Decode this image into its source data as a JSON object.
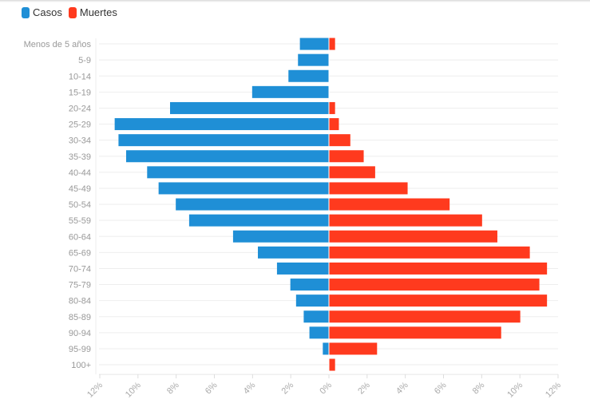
{
  "chart_data": {
    "type": "bar",
    "orientation": "horizontal-population-pyramid",
    "categories": [
      "Menos de 5 años",
      "5-9",
      "10-14",
      "15-19",
      "20-24",
      "25-29",
      "30-34",
      "35-39",
      "40-44",
      "45-49",
      "50-54",
      "55-59",
      "60-64",
      "65-69",
      "70-74",
      "75-79",
      "80-84",
      "85-89",
      "90-94",
      "95-99",
      "100+"
    ],
    "series": [
      {
        "name": "Casos",
        "color": "#1f8fd6",
        "side": "left",
        "values": [
          1.5,
          1.6,
          2.1,
          4.0,
          8.3,
          11.2,
          11.0,
          10.6,
          9.5,
          8.9,
          8.0,
          7.3,
          5.0,
          3.7,
          2.7,
          2.0,
          1.7,
          1.3,
          1.0,
          0.3,
          0.0
        ]
      },
      {
        "name": "Muertes",
        "color": "#ff3a1e",
        "side": "right",
        "values": [
          0.3,
          0.0,
          0.0,
          0.0,
          0.3,
          0.5,
          1.1,
          1.8,
          2.4,
          4.1,
          6.3,
          8.0,
          8.8,
          10.5,
          11.4,
          11.0,
          11.4,
          10.0,
          9.0,
          2.5,
          0.3
        ]
      }
    ],
    "xlim": [
      -12,
      12
    ],
    "xticks": [
      -12,
      -10,
      -8,
      -6,
      -4,
      -2,
      0,
      2,
      4,
      6,
      8,
      10,
      12
    ],
    "xtick_labels": [
      "12%",
      "10%",
      "8%",
      "6%",
      "4%",
      "2%",
      "0%",
      "2%",
      "4%",
      "6%",
      "8%",
      "10%",
      "12%"
    ],
    "legend": "top-left",
    "grid": true
  }
}
